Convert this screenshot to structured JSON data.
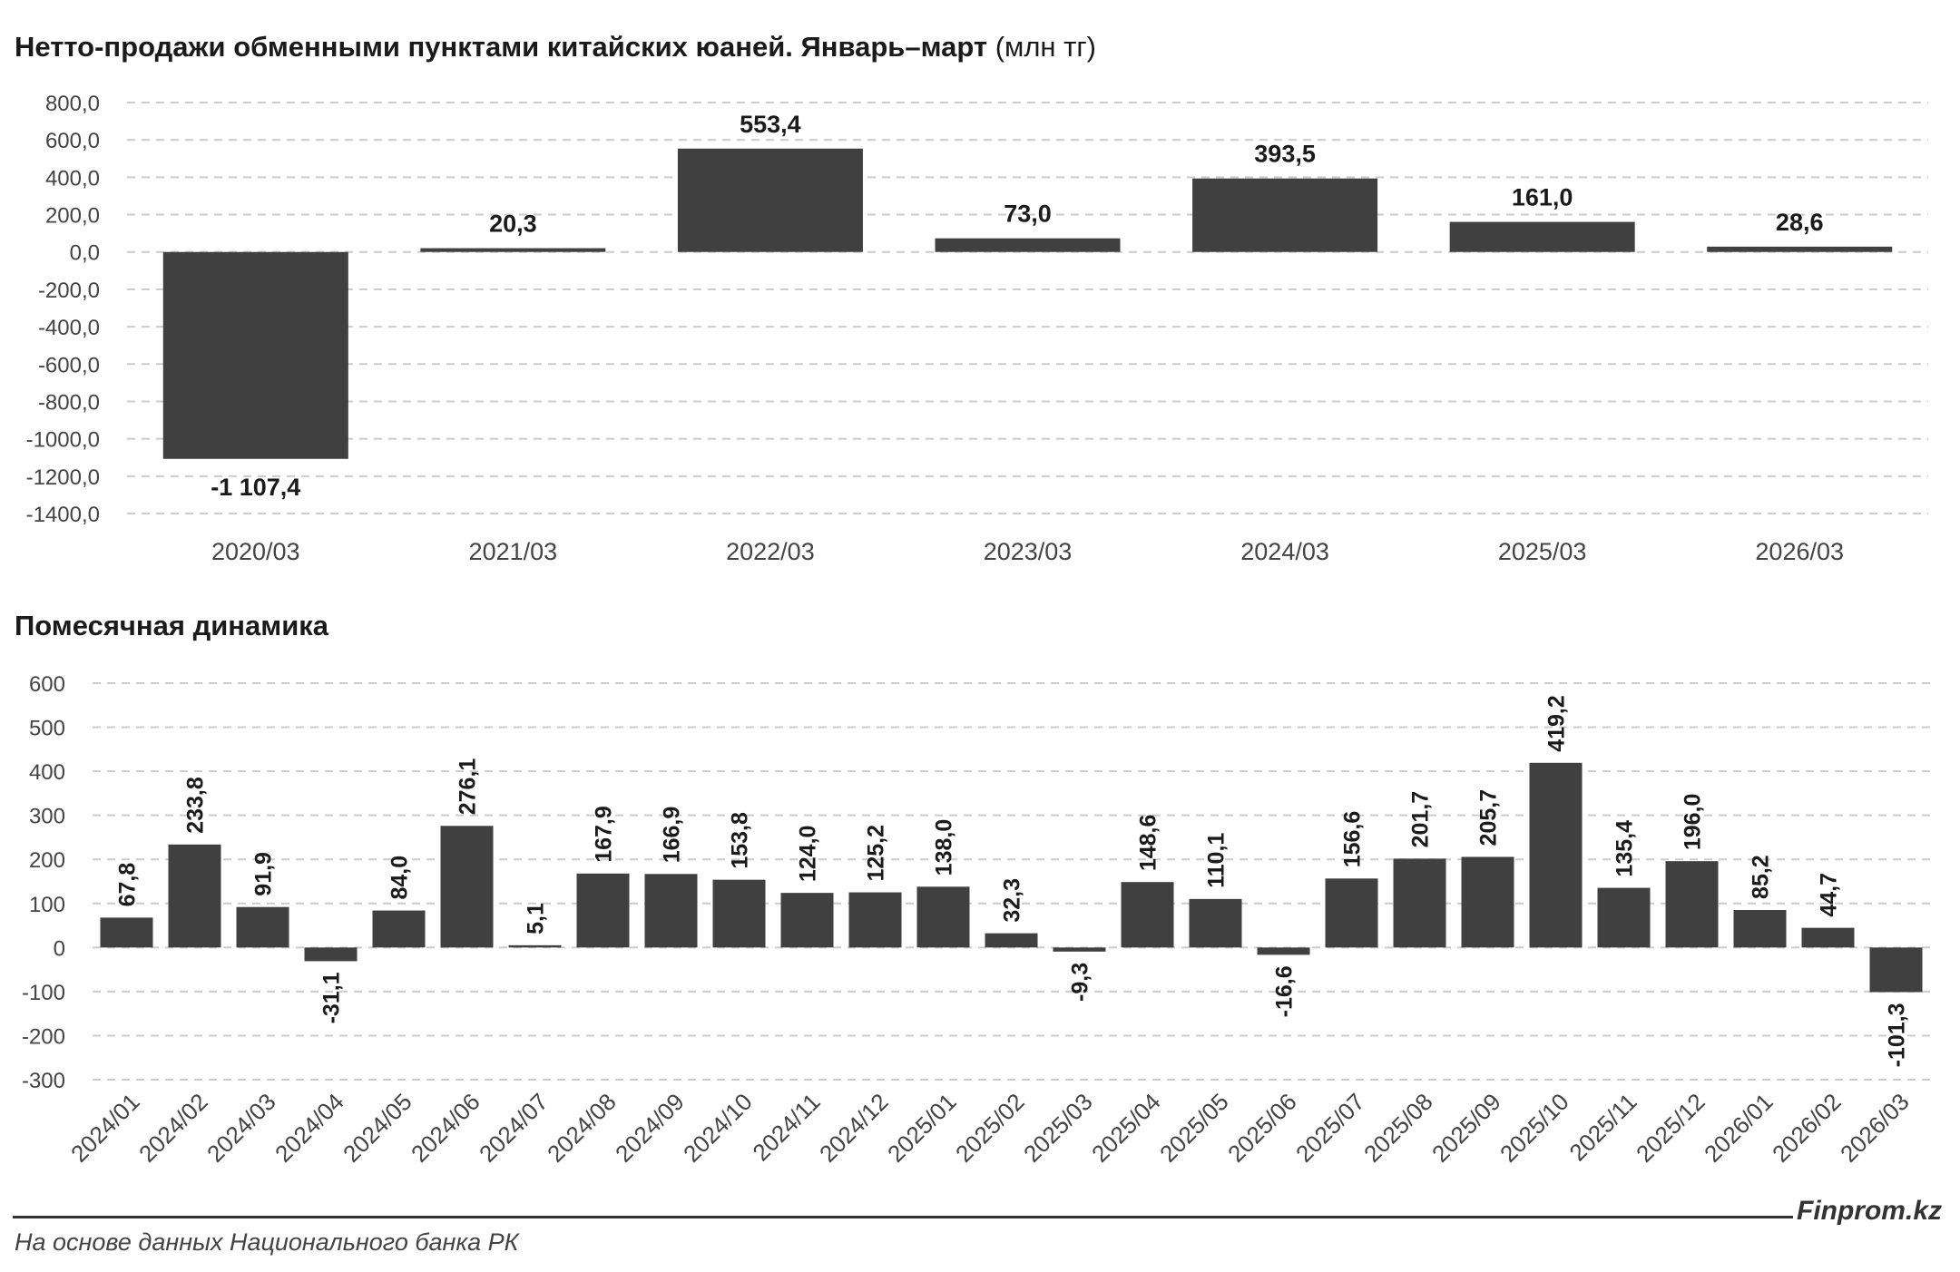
{
  "titles": {
    "main_bold": "Нетто-продажи обменными пунктами китайских юаней. Январь–март",
    "main_unit": "(млн тг)",
    "monthly": "Помесячная динамика"
  },
  "footer": {
    "brand": "Finprom.kz",
    "source": "На основе данных Национального банка РК"
  },
  "colors": {
    "bar": "#404040",
    "grid": "#cccccc",
    "axis_text": "#444444",
    "label_text": "#1a1a1a"
  },
  "chart_data": [
    {
      "type": "bar",
      "title": "Нетто-продажи обменными пунктами китайских юаней. Январь–март (млн тг)",
      "categories": [
        "2020/03",
        "2021/03",
        "2022/03",
        "2023/03",
        "2024/03",
        "2025/03",
        "2026/03"
      ],
      "values": [
        -1107.4,
        20.3,
        553.4,
        73.0,
        393.5,
        161.0,
        28.6
      ],
      "value_labels": [
        "-1 107,4",
        "20,3",
        "553,4",
        "73,0",
        "393,5",
        "161,0",
        "28,6"
      ],
      "ylim": [
        -1400,
        800
      ],
      "yticks": [
        800,
        600,
        400,
        200,
        0,
        -200,
        -400,
        -600,
        -800,
        -1000,
        -1200,
        -1400
      ],
      "ytick_labels": [
        "800,0",
        "600,0",
        "400,0",
        "200,0",
        "0,0",
        "-200,0",
        "-400,0",
        "-600,0",
        "-800,0",
        "-1000,0",
        "-1200,0",
        "-1400,0"
      ],
      "grid": true,
      "legend": "none"
    },
    {
      "type": "bar",
      "title": "Помесячная динамика",
      "categories": [
        "2024/01",
        "2024/02",
        "2024/03",
        "2024/04",
        "2024/05",
        "2024/06",
        "2024/07",
        "2024/08",
        "2024/09",
        "2024/10",
        "2024/11",
        "2024/12",
        "2025/01",
        "2025/02",
        "2025/03",
        "2025/04",
        "2025/05",
        "2025/06",
        "2025/07",
        "2025/08",
        "2025/09",
        "2025/10",
        "2025/11",
        "2025/12",
        "2026/01",
        "2026/02",
        "2026/03"
      ],
      "values": [
        67.8,
        233.8,
        91.9,
        -31.1,
        84.0,
        276.1,
        5.1,
        167.9,
        166.9,
        153.8,
        124.0,
        125.2,
        138.0,
        32.3,
        -9.3,
        148.6,
        110.1,
        -16.6,
        156.6,
        201.7,
        205.7,
        419.2,
        135.4,
        196.0,
        85.2,
        44.7,
        -101.3
      ],
      "value_labels": [
        "67,8",
        "233,8",
        "91,9",
        "-31,1",
        "84,0",
        "276,1",
        "5,1",
        "167,9",
        "166,9",
        "153,8",
        "124,0",
        "125,2",
        "138,0",
        "32,3",
        "-9,3",
        "148,6",
        "110,1",
        "-16,6",
        "156,6",
        "201,7",
        "205,7",
        "419,2",
        "135,4",
        "196,0",
        "85,2",
        "44,7",
        "-101,3"
      ],
      "ylim": [
        -300,
        600
      ],
      "yticks": [
        600,
        500,
        400,
        300,
        200,
        100,
        0,
        -100,
        -200,
        -300
      ],
      "ytick_labels": [
        "600",
        "500",
        "400",
        "300",
        "200",
        "100",
        "0",
        "-100",
        "-200",
        "-300"
      ],
      "grid": true,
      "legend": "none"
    }
  ]
}
